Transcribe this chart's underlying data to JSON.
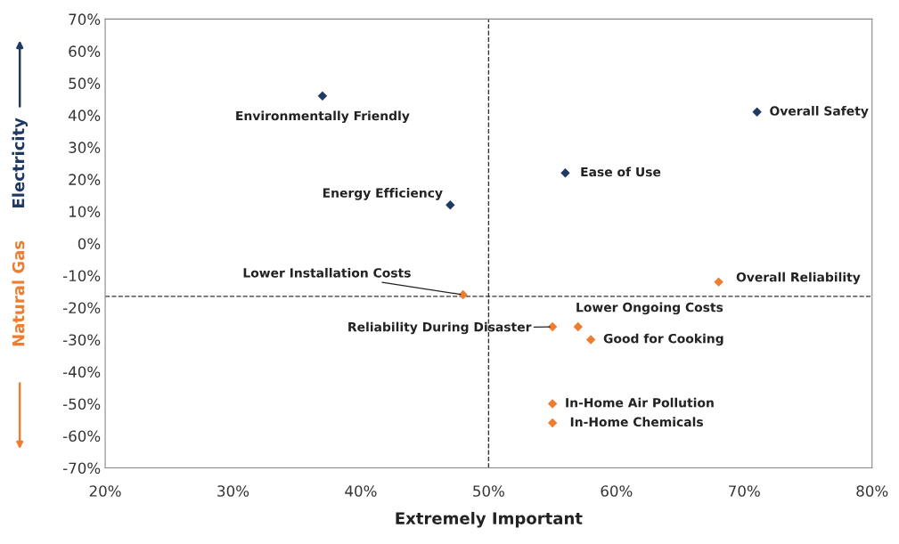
{
  "chart_data": {
    "type": "scatter",
    "xlabel": "Extremely Important",
    "series": [
      {
        "name": "Electricity",
        "color": "#1f3864",
        "x": [
          37,
          71,
          56,
          47
        ],
        "values": [
          46,
          41,
          22,
          12
        ]
      },
      {
        "name": "Natural Gas",
        "color": "#ed7d31",
        "x": [
          68,
          48,
          55,
          57,
          58,
          55,
          55
        ],
        "values": [
          -12,
          -16,
          -26,
          -26,
          -30,
          -50,
          -56
        ]
      }
    ],
    "annotations": [
      {
        "text": "Environmentally Friendly",
        "x": 37,
        "y": 46
      },
      {
        "text": "Overall Safety",
        "x": 71,
        "y": 41
      },
      {
        "text": "Ease of Use",
        "x": 56,
        "y": 22
      },
      {
        "text": "Energy Efficiency",
        "x": 47,
        "y": 12
      },
      {
        "text": "Overall Reliability",
        "x": 68,
        "y": -12
      },
      {
        "text": "Lower Installation Costs",
        "x": 48,
        "y": -16
      },
      {
        "text": "Reliability During Disaster",
        "x": 55,
        "y": -26
      },
      {
        "text": "Lower Ongoing Costs",
        "x": 57,
        "y": -26
      },
      {
        "text": "Good for Cooking",
        "x": 58,
        "y": -30
      },
      {
        "text": "In-Home Air Pollution",
        "x": 55,
        "y": -50
      },
      {
        "text": "In-Home Chemicals",
        "x": 55,
        "y": -56
      }
    ],
    "ref_lines": [
      {
        "axis": "x",
        "value": 50,
        "line_style": "dashed",
        "color": "#333333"
      },
      {
        "axis": "y",
        "value": -16.5,
        "line_style": "dashed",
        "color": "#333333"
      }
    ],
    "xlim": [
      20,
      80
    ],
    "ylim": [
      -70,
      70
    ],
    "xticks": [
      {
        "value": 20,
        "label": "20%"
      },
      {
        "value": 30,
        "label": "30%"
      },
      {
        "value": 40,
        "label": "40%"
      },
      {
        "value": 50,
        "label": "50%"
      },
      {
        "value": 60,
        "label": "60%"
      },
      {
        "value": 70,
        "label": "70%"
      },
      {
        "value": 80,
        "label": "80%"
      }
    ],
    "yticks": [
      {
        "value": -70,
        "label": "-70%"
      },
      {
        "value": -60,
        "label": "-60%"
      },
      {
        "value": -50,
        "label": "-50%"
      },
      {
        "value": -40,
        "label": "-40%"
      },
      {
        "value": -30,
        "label": "-30%"
      },
      {
        "value": -20,
        "label": "-20%"
      },
      {
        "value": -10,
        "label": "-10%"
      },
      {
        "value": 0,
        "label": "0%"
      },
      {
        "value": 10,
        "label": "10%"
      },
      {
        "value": 20,
        "label": "20%"
      },
      {
        "value": 30,
        "label": "30%"
      },
      {
        "value": 40,
        "label": "40%"
      },
      {
        "value": 50,
        "label": "50%"
      },
      {
        "value": 60,
        "label": "60%"
      },
      {
        "value": 70,
        "label": "70%"
      }
    ],
    "grid": false,
    "legend": false,
    "marker": "diamond"
  }
}
